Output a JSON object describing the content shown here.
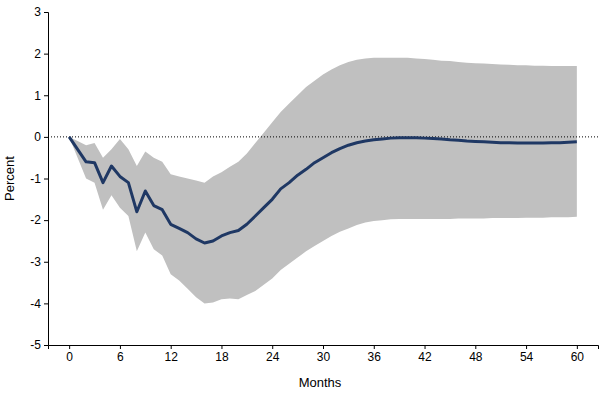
{
  "chart_data": {
    "type": "line",
    "x_label": "Months",
    "y_label": "Percent",
    "x": [
      0,
      1,
      2,
      3,
      4,
      5,
      6,
      7,
      8,
      9,
      10,
      11,
      12,
      13,
      14,
      15,
      16,
      17,
      18,
      19,
      20,
      21,
      22,
      23,
      24,
      25,
      26,
      27,
      28,
      29,
      30,
      31,
      32,
      33,
      34,
      35,
      36,
      37,
      38,
      39,
      40,
      41,
      42,
      43,
      44,
      45,
      46,
      47,
      48,
      49,
      50,
      51,
      52,
      53,
      54,
      55,
      56,
      57,
      58,
      59,
      60
    ],
    "xlim": [
      -2.5,
      62.5
    ],
    "xticks": [
      0,
      6,
      12,
      18,
      24,
      30,
      36,
      42,
      48,
      54,
      60
    ],
    "ylim": [
      -5,
      3
    ],
    "yticks": [
      -5,
      -4,
      -3,
      -2,
      -1,
      0,
      1,
      2,
      3
    ],
    "grid": false,
    "reference_line": 0,
    "series": [
      {
        "type": "band",
        "color": "#c0c0c0",
        "lower": [
          0,
          -0.5,
          -1.0,
          -1.1,
          -1.75,
          -1.4,
          -1.7,
          -1.9,
          -2.75,
          -2.3,
          -2.7,
          -2.85,
          -3.3,
          -3.45,
          -3.65,
          -3.85,
          -4.0,
          -3.98,
          -3.9,
          -3.88,
          -3.9,
          -3.8,
          -3.7,
          -3.55,
          -3.4,
          -3.2,
          -3.05,
          -2.9,
          -2.75,
          -2.62,
          -2.5,
          -2.38,
          -2.28,
          -2.2,
          -2.12,
          -2.06,
          -2.02,
          -2.0,
          -1.98,
          -1.97,
          -1.97,
          -1.97,
          -1.97,
          -1.97,
          -1.97,
          -1.97,
          -1.96,
          -1.96,
          -1.96,
          -1.96,
          -1.95,
          -1.95,
          -1.95,
          -1.95,
          -1.94,
          -1.94,
          -1.94,
          -1.93,
          -1.93,
          -1.93,
          -1.92
        ],
        "upper": [
          0,
          -0.1,
          -0.2,
          -0.15,
          -0.5,
          -0.3,
          -0.05,
          -0.3,
          -0.7,
          -0.35,
          -0.5,
          -0.6,
          -0.9,
          -0.95,
          -1.0,
          -1.05,
          -1.1,
          -0.95,
          -0.85,
          -0.72,
          -0.6,
          -0.4,
          -0.15,
          0.1,
          0.35,
          0.6,
          0.8,
          1.0,
          1.2,
          1.35,
          1.5,
          1.62,
          1.72,
          1.8,
          1.85,
          1.88,
          1.9,
          1.9,
          1.9,
          1.9,
          1.9,
          1.88,
          1.87,
          1.85,
          1.83,
          1.82,
          1.8,
          1.78,
          1.77,
          1.76,
          1.75,
          1.74,
          1.73,
          1.72,
          1.72,
          1.71,
          1.71,
          1.7,
          1.7,
          1.7,
          1.7
        ]
      },
      {
        "type": "line",
        "color": "#1f3864",
        "values": [
          0,
          -0.3,
          -0.6,
          -0.62,
          -1.1,
          -0.7,
          -0.95,
          -1.1,
          -1.8,
          -1.3,
          -1.65,
          -1.75,
          -2.1,
          -2.2,
          -2.3,
          -2.45,
          -2.55,
          -2.5,
          -2.38,
          -2.3,
          -2.25,
          -2.1,
          -1.9,
          -1.7,
          -1.5,
          -1.25,
          -1.1,
          -0.92,
          -0.78,
          -0.62,
          -0.5,
          -0.38,
          -0.28,
          -0.2,
          -0.14,
          -0.1,
          -0.07,
          -0.05,
          -0.03,
          -0.02,
          -0.02,
          -0.02,
          -0.03,
          -0.04,
          -0.05,
          -0.07,
          -0.08,
          -0.1,
          -0.11,
          -0.12,
          -0.13,
          -0.14,
          -0.14,
          -0.15,
          -0.15,
          -0.15,
          -0.15,
          -0.14,
          -0.14,
          -0.13,
          -0.12
        ]
      }
    ]
  }
}
